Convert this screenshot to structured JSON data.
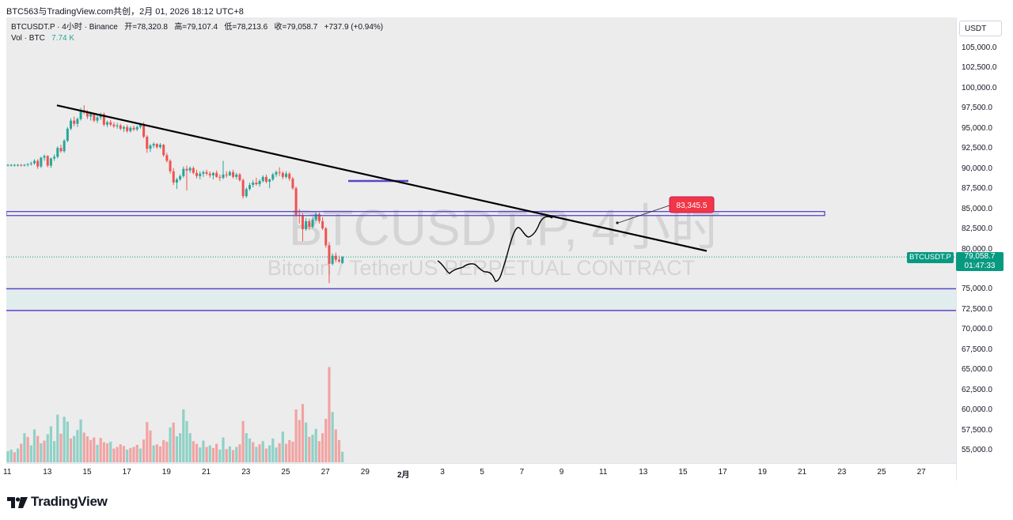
{
  "header": {
    "caption": "BTC563与TradingView.com共创，2月 01, 2026 18:12 UTC+8"
  },
  "legend": {
    "symbol_line": "BTCUSDT.P · 4小时 · Binance",
    "open": "开=78,320.8",
    "high": "高=79,107.4",
    "low": "低=78,213.6",
    "close": "收=79,058.7",
    "change": "+737.9 (+0.94%)",
    "vol_label": "Vol · BTC",
    "vol_value": "7.74 K"
  },
  "watermark": {
    "symbol": "BTCUSDT.P, 4小时",
    "description": "Bitcoin / TetherUS PERPETUAL CONTRACT"
  },
  "price_axis": {
    "currency": "USDT",
    "ticks": [
      "105,000.0",
      "102,500.0",
      "100,000.0",
      "97,500.0",
      "95,000.0",
      "92,500.0",
      "90,000.0",
      "87,500.0",
      "85,000.0",
      "82,500.0",
      "80,000.0",
      "75,000.0",
      "72,500.0",
      "70,000.0",
      "67,500.0",
      "65,000.0",
      "62,500.0",
      "60,000.0",
      "57,500.0",
      "55,000.0"
    ],
    "current_price": "79,058.7",
    "countdown": "01:47:33",
    "symbol_tag": "BTCUSDT.P"
  },
  "time_axis": {
    "labels": [
      "11",
      "13",
      "15",
      "17",
      "19",
      "21",
      "23",
      "25",
      "27",
      "29",
      "2月",
      "3",
      "5",
      "7",
      "9",
      "11",
      "13",
      "15",
      "17",
      "19",
      "21",
      "23",
      "25",
      "27"
    ]
  },
  "annotation": {
    "target_label": "83,345.5"
  },
  "colors": {
    "up": "#26a69a",
    "down": "#ef5350",
    "up_volume": "#8fd1c7",
    "down_volume": "#f2a3a3",
    "zone_line": "#5b46c8",
    "trendline": "#000000",
    "target_badge": "#f23645",
    "price_tag": "#089981"
  },
  "chart_data": {
    "type": "candlestick",
    "ylim": [
      53000,
      107000
    ],
    "x_start": "Jan 11",
    "x_interval": "4h",
    "ohlc": [
      [
        90500,
        90600,
        90300,
        90500
      ],
      [
        90500,
        90600,
        90300,
        90500
      ],
      [
        90500,
        90600,
        90300,
        90500
      ],
      [
        90500,
        90600,
        90300,
        90500
      ],
      [
        90500,
        90600,
        90300,
        90450
      ],
      [
        90450,
        90600,
        90300,
        90500
      ],
      [
        90500,
        90700,
        90300,
        90600
      ],
      [
        90600,
        90900,
        90400,
        90700
      ],
      [
        90700,
        91200,
        90500,
        91000
      ],
      [
        91000,
        91200,
        90000,
        90300
      ],
      [
        90300,
        91500,
        90100,
        91400
      ],
      [
        91400,
        91800,
        91000,
        91600
      ],
      [
        91600,
        91700,
        90200,
        90400
      ],
      [
        90400,
        91400,
        90100,
        91300
      ],
      [
        91300,
        91800,
        91000,
        91500
      ],
      [
        91500,
        92800,
        91300,
        92600
      ],
      [
        92600,
        93000,
        92000,
        92200
      ],
      [
        92200,
        93700,
        92000,
        93500
      ],
      [
        93500,
        95200,
        93300,
        95000
      ],
      [
        95000,
        96300,
        94800,
        96000
      ],
      [
        96000,
        96500,
        95300,
        95600
      ],
      [
        95600,
        96400,
        95200,
        96200
      ],
      [
        96200,
        97600,
        96000,
        97300
      ],
      [
        97300,
        97900,
        96800,
        97000
      ],
      [
        97000,
        97300,
        96200,
        96500
      ],
      [
        96500,
        97100,
        96000,
        96900
      ],
      [
        96900,
        97000,
        95800,
        96000
      ],
      [
        96000,
        96700,
        95700,
        96400
      ],
      [
        96400,
        97000,
        96100,
        96800
      ],
      [
        96800,
        97000,
        95300,
        95500
      ],
      [
        95500,
        96000,
        95200,
        95800
      ],
      [
        95800,
        96100,
        95300,
        95500
      ],
      [
        95500,
        95800,
        95100,
        95300
      ],
      [
        95300,
        95700,
        95000,
        95400
      ],
      [
        95400,
        95600,
        94800,
        95000
      ],
      [
        95000,
        95400,
        94600,
        95200
      ],
      [
        95200,
        95500,
        94500,
        94700
      ],
      [
        94700,
        95300,
        94500,
        95100
      ],
      [
        95100,
        95400,
        94700,
        94900
      ],
      [
        94900,
        95400,
        94700,
        95200
      ],
      [
        95200,
        95700,
        95000,
        95500
      ],
      [
        95500,
        95800,
        93800,
        94000
      ],
      [
        94000,
        94200,
        92000,
        92500
      ],
      [
        92500,
        93100,
        92100,
        92900
      ],
      [
        92900,
        93300,
        92600,
        93100
      ],
      [
        93100,
        93200,
        92500,
        92700
      ],
      [
        92700,
        93200,
        92500,
        93000
      ],
      [
        93000,
        93100,
        91500,
        91700
      ],
      [
        91700,
        92000,
        90800,
        91000
      ],
      [
        91000,
        91200,
        89400,
        89700
      ],
      [
        89700,
        90100,
        88000,
        88300
      ],
      [
        88300,
        88900,
        87500,
        88700
      ],
      [
        88700,
        89300,
        88500,
        89100
      ],
      [
        89100,
        90300,
        88900,
        90000
      ],
      [
        90000,
        90400,
        87300,
        89800
      ],
      [
        89800,
        90300,
        89500,
        90100
      ],
      [
        90100,
        90300,
        89300,
        89500
      ],
      [
        89500,
        89900,
        88800,
        89100
      ],
      [
        89100,
        89700,
        88700,
        89400
      ],
      [
        89400,
        89800,
        89000,
        89600
      ],
      [
        89600,
        89900,
        89200,
        89400
      ],
      [
        89400,
        89700,
        88900,
        89200
      ],
      [
        89200,
        89600,
        88700,
        89500
      ],
      [
        89500,
        89800,
        88900,
        89000
      ],
      [
        89000,
        89300,
        88500,
        88900
      ],
      [
        88900,
        91000,
        88700,
        89300
      ],
      [
        89300,
        89700,
        88900,
        89200
      ],
      [
        89200,
        89800,
        89100,
        89600
      ],
      [
        89600,
        89900,
        88800,
        89000
      ],
      [
        89000,
        89500,
        88700,
        89300
      ],
      [
        89300,
        89500,
        88400,
        88600
      ],
      [
        88600,
        88800,
        86300,
        86600
      ],
      [
        86600,
        87700,
        86400,
        87500
      ],
      [
        87500,
        88300,
        87300,
        88000
      ],
      [
        88000,
        88600,
        87700,
        88300
      ],
      [
        88300,
        88900,
        87900,
        88100
      ],
      [
        88100,
        88700,
        87800,
        88500
      ],
      [
        88500,
        89200,
        88300,
        89000
      ],
      [
        89000,
        89300,
        88200,
        88400
      ],
      [
        88400,
        88800,
        87600,
        88700
      ],
      [
        88700,
        89500,
        88500,
        89300
      ],
      [
        89300,
        89800,
        89000,
        89600
      ],
      [
        89600,
        90200,
        89100,
        89500
      ],
      [
        89500,
        89700,
        88700,
        89000
      ],
      [
        89000,
        89700,
        88800,
        89400
      ],
      [
        89400,
        89600,
        88500,
        88800
      ],
      [
        88800,
        89000,
        87400,
        87600
      ],
      [
        87600,
        87800,
        84100,
        84300
      ],
      [
        84300,
        85000,
        83200,
        84200
      ],
      [
        84200,
        84500,
        81000,
        82500
      ],
      [
        82500,
        83900,
        82300,
        83500
      ],
      [
        83500,
        83800,
        82400,
        82800
      ],
      [
        82800,
        84000,
        82600,
        83700
      ],
      [
        83700,
        84700,
        83500,
        84400
      ],
      [
        84400,
        84600,
        83200,
        83500
      ],
      [
        83500,
        84000,
        82400,
        82600
      ],
      [
        82600,
        82800,
        80200,
        80500
      ],
      [
        80500,
        80900,
        75800,
        78200
      ],
      [
        78200,
        79500,
        78000,
        79200
      ],
      [
        79200,
        79600,
        78400,
        78700
      ],
      [
        78700,
        79200,
        78300,
        78500
      ],
      [
        78300,
        79100,
        78200,
        79100
      ]
    ],
    "volume": [
      [
        2.1,
        1
      ],
      [
        2.4,
        1
      ],
      [
        1.9,
        0
      ],
      [
        2.6,
        1
      ],
      [
        3.5,
        0
      ],
      [
        5.5,
        1
      ],
      [
        4.8,
        0
      ],
      [
        3.2,
        1
      ],
      [
        6.2,
        1
      ],
      [
        5.0,
        0
      ],
      [
        3.6,
        1
      ],
      [
        4.1,
        0
      ],
      [
        5.3,
        1
      ],
      [
        6.8,
        1
      ],
      [
        4.0,
        1
      ],
      [
        9.0,
        1
      ],
      [
        5.4,
        0
      ],
      [
        8.6,
        1
      ],
      [
        7.7,
        1
      ],
      [
        4.5,
        0
      ],
      [
        5.0,
        1
      ],
      [
        6.1,
        1
      ],
      [
        8.1,
        1
      ],
      [
        5.6,
        0
      ],
      [
        4.9,
        0
      ],
      [
        4.2,
        0
      ],
      [
        4.7,
        0
      ],
      [
        3.3,
        1
      ],
      [
        4.6,
        0
      ],
      [
        3.8,
        0
      ],
      [
        3.6,
        0
      ],
      [
        3.9,
        1
      ],
      [
        2.6,
        0
      ],
      [
        2.9,
        0
      ],
      [
        3.4,
        0
      ],
      [
        3.1,
        0
      ],
      [
        2.4,
        1
      ],
      [
        2.7,
        0
      ],
      [
        2.9,
        0
      ],
      [
        3.3,
        0
      ],
      [
        2.6,
        1
      ],
      [
        4.3,
        0
      ],
      [
        7.6,
        0
      ],
      [
        6.0,
        0
      ],
      [
        3.2,
        1
      ],
      [
        3.4,
        0
      ],
      [
        3.0,
        0
      ],
      [
        4.2,
        0
      ],
      [
        3.9,
        0
      ],
      [
        6.6,
        1
      ],
      [
        7.5,
        0
      ],
      [
        4.9,
        1
      ],
      [
        5.5,
        1
      ],
      [
        10.0,
        1
      ],
      [
        7.8,
        1
      ],
      [
        5.5,
        1
      ],
      [
        4.0,
        0
      ],
      [
        3.5,
        0
      ],
      [
        2.8,
        1
      ],
      [
        4.1,
        1
      ],
      [
        2.9,
        0
      ],
      [
        3.2,
        1
      ],
      [
        2.7,
        0
      ],
      [
        3.5,
        0
      ],
      [
        2.4,
        1
      ],
      [
        4.7,
        1
      ],
      [
        2.5,
        0
      ],
      [
        3.0,
        1
      ],
      [
        2.3,
        0
      ],
      [
        2.9,
        1
      ],
      [
        3.4,
        0
      ],
      [
        7.8,
        0
      ],
      [
        5.5,
        1
      ],
      [
        4.5,
        1
      ],
      [
        3.8,
        0
      ],
      [
        2.9,
        1
      ],
      [
        3.4,
        0
      ],
      [
        4.0,
        1
      ],
      [
        2.6,
        0
      ],
      [
        3.2,
        1
      ],
      [
        4.5,
        1
      ],
      [
        2.8,
        1
      ],
      [
        3.6,
        0
      ],
      [
        5.8,
        1
      ],
      [
        3.5,
        0
      ],
      [
        4.2,
        0
      ],
      [
        3.9,
        0
      ],
      [
        10.0,
        0
      ],
      [
        8.0,
        0
      ],
      [
        11.0,
        0
      ],
      [
        7.5,
        1
      ],
      [
        4.8,
        0
      ],
      [
        5.2,
        1
      ],
      [
        6.3,
        1
      ],
      [
        4.0,
        0
      ],
      [
        5.5,
        0
      ],
      [
        8.2,
        0
      ],
      [
        18.0,
        0
      ],
      [
        9.5,
        1
      ],
      [
        6.2,
        0
      ],
      [
        4.2,
        0
      ],
      [
        2.0,
        1
      ]
    ],
    "drawings": {
      "resistance_zone": [
        84200,
        84700
      ],
      "support_zone": [
        72400,
        75100
      ],
      "small_level": 88500,
      "trendline": [
        [
          14.8,
          97900
        ],
        [
          72.5,
          79800
        ]
      ],
      "target_label": "83,345.5"
    }
  }
}
